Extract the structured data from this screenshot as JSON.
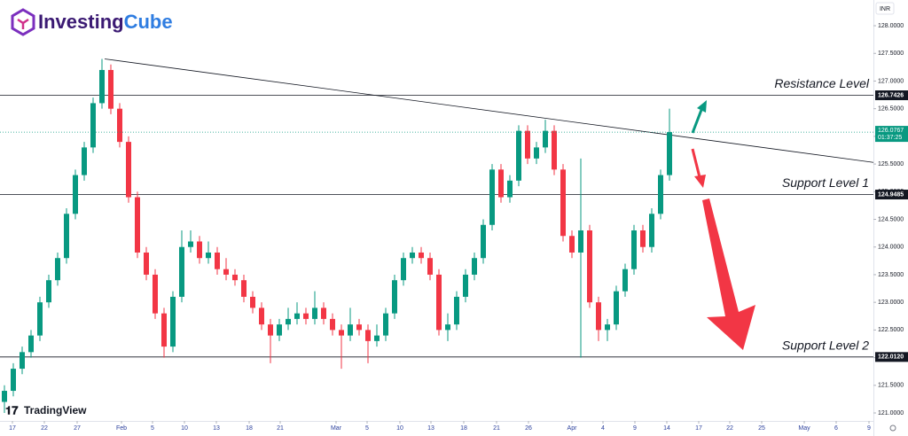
{
  "brand": {
    "parts": [
      "Investing",
      "Cube"
    ],
    "platform": "TradingView"
  },
  "chart_data": {
    "type": "candlestick",
    "currency": "INR",
    "grid": false,
    "up_color": "#089981",
    "down_color": "#f23645",
    "xlim": [
      0,
      98.5
    ],
    "xticks": [
      {
        "value": 1.4,
        "label": "17"
      },
      {
        "value": 5,
        "label": "22"
      },
      {
        "value": 8.7,
        "label": "27"
      },
      {
        "value": 13.7,
        "label": "Feb"
      },
      {
        "value": 17.2,
        "label": "5"
      },
      {
        "value": 20.8,
        "label": "10"
      },
      {
        "value": 24.4,
        "label": "13"
      },
      {
        "value": 28.1,
        "label": "18"
      },
      {
        "value": 31.6,
        "label": "21"
      },
      {
        "value": 37.9,
        "label": "Mar"
      },
      {
        "value": 41.4,
        "label": "5"
      },
      {
        "value": 45.1,
        "label": "10"
      },
      {
        "value": 48.6,
        "label": "13"
      },
      {
        "value": 52.3,
        "label": "18"
      },
      {
        "value": 56,
        "label": "21"
      },
      {
        "value": 59.6,
        "label": "26"
      },
      {
        "value": 64.5,
        "label": "Apr"
      },
      {
        "value": 68,
        "label": "4"
      },
      {
        "value": 71.6,
        "label": "9"
      },
      {
        "value": 75.2,
        "label": "14"
      },
      {
        "value": 78.8,
        "label": "17"
      },
      {
        "value": 82.3,
        "label": "22"
      },
      {
        "value": 85.9,
        "label": "25"
      },
      {
        "value": 90.7,
        "label": "May"
      },
      {
        "value": 94.3,
        "label": "6"
      },
      {
        "value": 98,
        "label": "9"
      }
    ],
    "ylim": [
      120.856,
      128.465
    ],
    "yticks": [
      {
        "value": 121,
        "label": "121.0000"
      },
      {
        "value": 121.5,
        "label": "121.5000"
      },
      {
        "value": 122,
        "label": "122.0000"
      },
      {
        "value": 122.5,
        "label": "122.5000"
      },
      {
        "value": 123,
        "label": "123.0000"
      },
      {
        "value": 123.5,
        "label": "123.5000"
      },
      {
        "value": 124,
        "label": "124.0000"
      },
      {
        "value": 124.5,
        "label": "124.5000"
      },
      {
        "value": 125,
        "label": "125.0000"
      },
      {
        "value": 125.5,
        "label": "125.5000"
      },
      {
        "value": 126,
        "label": "126.0000"
      },
      {
        "value": 126.5,
        "label": "126.5000"
      },
      {
        "value": 127,
        "label": "127.0000"
      },
      {
        "value": 127.5,
        "label": "127.5000"
      },
      {
        "value": 128,
        "label": "128.0000"
      }
    ],
    "x": [
      0.5,
      1.5,
      2.5,
      3.5,
      4.5,
      5.5,
      6.5,
      7.5,
      8.5,
      9.5,
      10.5,
      11.5,
      12.5,
      13.5,
      14.5,
      15.5,
      16.5,
      17.5,
      18.5,
      19.5,
      20.5,
      21.5,
      22.5,
      23.5,
      24.5,
      25.5,
      26.5,
      27.5,
      28.5,
      29.5,
      30.5,
      31.5,
      32.5,
      33.5,
      34.5,
      35.5,
      36.5,
      37.5,
      38.5,
      39.5,
      40.5,
      41.5,
      42.5,
      43.5,
      44.5,
      45.5,
      46.5,
      47.5,
      48.5,
      49.5,
      50.5,
      51.5,
      52.5,
      53.5,
      54.5,
      55.5,
      56.5,
      57.5,
      58.5,
      59.5,
      60.5,
      61.5,
      62.5,
      63.5,
      64.5,
      65.5,
      66.5,
      67.5,
      68.5,
      69.5,
      70.5,
      71.5,
      72.5,
      73.5,
      74.5,
      75.5
    ],
    "open": [
      121.2,
      121.4,
      121.8,
      122.1,
      122.4,
      123,
      123.4,
      123.8,
      124.6,
      125.3,
      125.8,
      126.6,
      127.2,
      126.5,
      125.9,
      124.9,
      123.9,
      123.5,
      122.8,
      122.2,
      123.1,
      124,
      124.1,
      123.8,
      123.9,
      123.6,
      123.5,
      123.4,
      123.1,
      122.9,
      122.6,
      122.4,
      122.6,
      122.7,
      122.8,
      122.7,
      122.9,
      122.7,
      122.5,
      122.4,
      122.6,
      122.5,
      122.3,
      122.4,
      122.8,
      123.4,
      123.8,
      123.9,
      123.8,
      123.5,
      122.5,
      122.6,
      123.1,
      123.5,
      123.8,
      124.4,
      125.4,
      124.9,
      125.2,
      126.1,
      125.6,
      125.8,
      126.1,
      125.4,
      124.2,
      123.9,
      124.3,
      123,
      122.5,
      122.6,
      123.2,
      123.6,
      124.3,
      124,
      124.6,
      125.3
    ],
    "high": [
      121.5,
      121.9,
      122.2,
      122.5,
      123.1,
      123.5,
      123.9,
      124.7,
      125.4,
      125.9,
      126.7,
      127.4,
      127.3,
      126.6,
      126,
      125,
      124,
      123.6,
      122.9,
      123.2,
      124.3,
      124.3,
      124.2,
      124.1,
      124,
      123.8,
      123.6,
      123.5,
      123.2,
      123,
      122.7,
      122.7,
      122.9,
      123,
      122.9,
      123.2,
      123,
      122.8,
      122.6,
      122.9,
      122.7,
      122.6,
      122.6,
      122.9,
      123.5,
      123.9,
      124,
      124,
      123.9,
      123.6,
      122.8,
      123.2,
      123.6,
      123.9,
      124.5,
      125.5,
      125.5,
      125.3,
      126.2,
      126.2,
      125.9,
      126.3,
      126.2,
      125.5,
      124.3,
      125.6,
      124.4,
      123.1,
      122.7,
      123.3,
      123.7,
      124.4,
      124.4,
      124.7,
      125.4,
      126.5
    ],
    "low": [
      121,
      121.3,
      121.7,
      122,
      122.3,
      122.9,
      123.3,
      123.7,
      124.5,
      125.2,
      125.7,
      126.5,
      126.4,
      125.8,
      124.8,
      123.8,
      123.4,
      122.7,
      122,
      122.1,
      123,
      123.9,
      123.7,
      123.7,
      123.5,
      123.4,
      123.3,
      123,
      122.8,
      122.5,
      121.9,
      122.3,
      122.5,
      122.6,
      122.6,
      122.6,
      122.6,
      122.4,
      121.8,
      122.3,
      122.4,
      121.9,
      122.2,
      122.3,
      122.7,
      123.3,
      123.7,
      123.7,
      123.4,
      122.4,
      122.3,
      122.5,
      123,
      123.4,
      123.7,
      124.3,
      124.8,
      124.8,
      125.1,
      125.5,
      125.5,
      125.7,
      125.3,
      124.1,
      123.8,
      122,
      122.9,
      122.3,
      122.3,
      122.5,
      123.1,
      123.5,
      123.9,
      123.9,
      124.5,
      125.2
    ],
    "close": [
      121.4,
      121.8,
      122.1,
      122.4,
      123,
      123.4,
      123.8,
      124.6,
      125.3,
      125.8,
      126.6,
      127.2,
      126.5,
      125.9,
      124.9,
      123.9,
      123.5,
      122.8,
      122.2,
      123.1,
      124,
      124.1,
      123.8,
      123.9,
      123.6,
      123.5,
      123.4,
      123.1,
      122.9,
      122.6,
      122.4,
      122.6,
      122.7,
      122.8,
      122.7,
      122.9,
      122.7,
      122.5,
      122.4,
      122.6,
      122.5,
      122.3,
      122.4,
      122.8,
      123.4,
      123.8,
      123.9,
      123.8,
      123.5,
      122.5,
      122.6,
      123.1,
      123.5,
      123.8,
      124.4,
      125.4,
      124.9,
      125.2,
      126.1,
      125.6,
      125.8,
      126.1,
      125.4,
      124.2,
      123.9,
      124.3,
      123,
      122.5,
      122.6,
      123.2,
      123.6,
      124.3,
      124,
      124.6,
      125.3,
      126.0767
    ],
    "last_price": 126.0767,
    "countdown": "01:37:25",
    "levels": {
      "names": [
        "Resistance Level",
        "Support Level 1",
        "Support Level 2"
      ],
      "values": [
        126.7426,
        124.9485,
        122.012
      ],
      "value_labels": [
        "126.7426",
        "124.9485",
        "122.0120"
      ]
    },
    "trendline": {
      "x": [
        11.8,
        98.5
      ],
      "y": [
        127.4,
        125.53
      ]
    }
  }
}
